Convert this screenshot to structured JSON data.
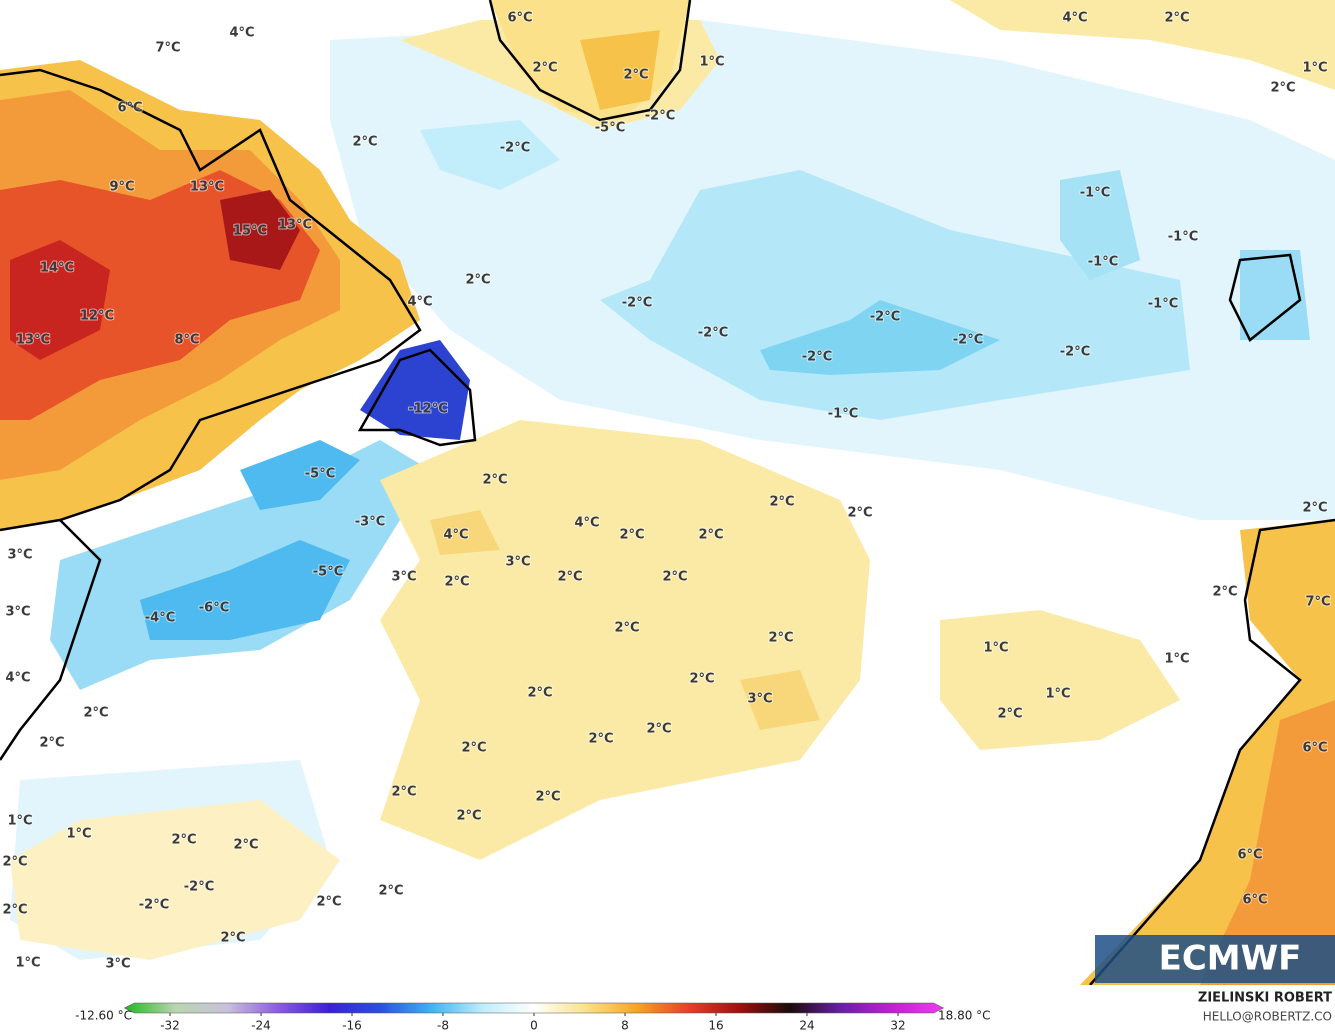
{
  "map": {
    "labels": [
      "6°C",
      "4°C",
      "2°C",
      "4°C",
      "7°C",
      "2°C",
      "2°C",
      "1°C",
      "1°C",
      "2°C",
      "6°C",
      "-5°C",
      "-2°C",
      "2°C",
      "-2°C",
      "9°C",
      "13°C",
      "-1°C",
      "15°C",
      "13°C",
      "-1°C",
      "-1°C",
      "14°C",
      "2°C",
      "-2°C",
      "-1°C",
      "12°C",
      "4°C",
      "-2°C",
      "-2°C",
      "-2°C",
      "13°C",
      "8°C",
      "-2°C",
      "-2°C",
      "-12°C",
      "-1°C",
      "2°C",
      "-5°C",
      "2°C",
      "2°C",
      "2°C",
      "-3°C",
      "4°C",
      "2°C",
      "2°C",
      "4°C",
      "3°C",
      "3°C",
      "-5°C",
      "3°C",
      "2°C",
      "2°C",
      "2°C",
      "2°C",
      "-6°C",
      "-4°C",
      "7°C",
      "3°C",
      "2°C",
      "2°C",
      "1°C",
      "1°C",
      "4°C",
      "2°C",
      "2°C",
      "3°C",
      "1°C",
      "2°C",
      "2°C",
      "2°C",
      "2°C",
      "6°C",
      "2°C",
      "2°C",
      "2°C",
      "2°C",
      "2°C",
      "1°C",
      "1°C",
      "2°C",
      "2°C",
      "6°C",
      "2°C",
      "-2°C",
      "2°C",
      "2°C",
      "-2°C",
      "6°C",
      "2°C",
      "2°C",
      "3°C",
      "1°C"
    ],
    "logo": "ECMWF"
  },
  "colorbar": {
    "min_label": "-12.60 °C",
    "max_label": "18.80 °C",
    "range": [
      -36,
      36
    ],
    "ticks": [
      -32,
      -24,
      -16,
      -8,
      0,
      8,
      16,
      24,
      32
    ],
    "colors": [
      "#1fb81f",
      "#b9d6b0",
      "#c9c0dc",
      "#8c5ce0",
      "#3a1fd6",
      "#2a4fe0",
      "#3fb4f0",
      "#bfeefc",
      "#ffffff",
      "#fbe28a",
      "#f5a623",
      "#e8402a",
      "#a01010",
      "#1a0a0a",
      "#6a1fa8",
      "#c020d0",
      "#f03cf0"
    ]
  },
  "credit": {
    "name": "ZIELINSKI ROBERT",
    "contact": "HELLO@ROBERTZ.CO"
  }
}
